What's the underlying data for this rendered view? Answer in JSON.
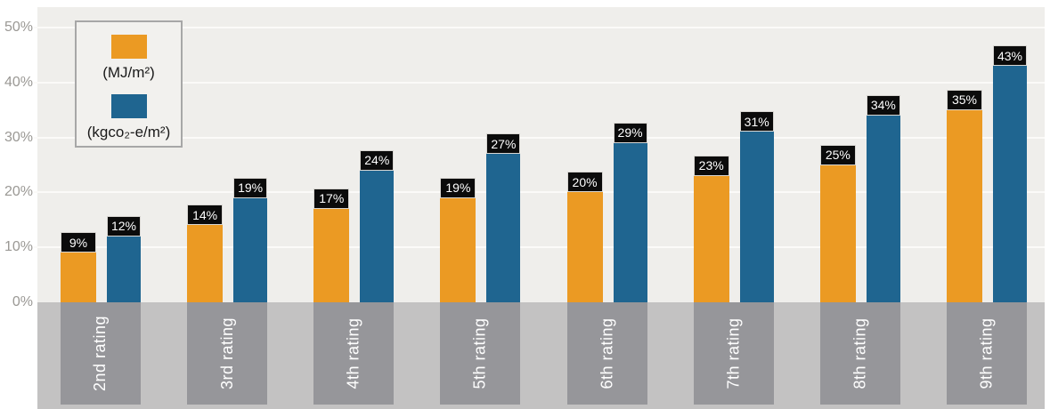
{
  "chart_data": {
    "type": "bar",
    "categories": [
      "2nd rating",
      "3rd rating",
      "4th rating",
      "5th rating",
      "6th rating",
      "7th rating",
      "8th rating",
      "9th rating"
    ],
    "series": [
      {
        "name": "(MJ/m²)",
        "color": "#EB9A23",
        "values": [
          9,
          14,
          17,
          19,
          20,
          23,
          25,
          35
        ],
        "labels": [
          "9%",
          "14%",
          "17%",
          "19%",
          "20%",
          "23%",
          "25%",
          "35%"
        ]
      },
      {
        "name": "(kgco₂-e/m²)",
        "color": "#1F6590",
        "values": [
          12,
          19,
          24,
          27,
          29,
          31,
          34,
          43
        ],
        "labels": [
          "12%",
          "19%",
          "24%",
          "27%",
          "29%",
          "31%",
          "34%",
          "43%"
        ]
      }
    ],
    "title": "",
    "xlabel": "",
    "ylabel": "",
    "ylim": [
      0,
      50
    ],
    "ytick_labels": [
      "0%",
      "10%",
      "20%",
      "30%",
      "40%",
      "50%"
    ],
    "grid": true,
    "legend_position": "top-left",
    "value_labels": "black boxes atop each bar"
  },
  "legend": {
    "series1_label": "(MJ/m²)",
    "series2_label": "(kgco₂-e/m²)"
  },
  "colors": {
    "bar_orange": "#EB9A23",
    "bar_blue": "#1F6590",
    "plot_background": "#EFEEEB",
    "gridline": "#FBFAF8",
    "band_light_gray": "#C3C2C2",
    "band_dark_gray": "#96969A",
    "value_box_background": "#0B0B0B",
    "value_box_text": "#FFFFFF",
    "axis_text": "#9A9894",
    "category_text": "#FFFFFF",
    "legend_border": "#A7A7A7",
    "legend_background": "#F2F1EE"
  }
}
